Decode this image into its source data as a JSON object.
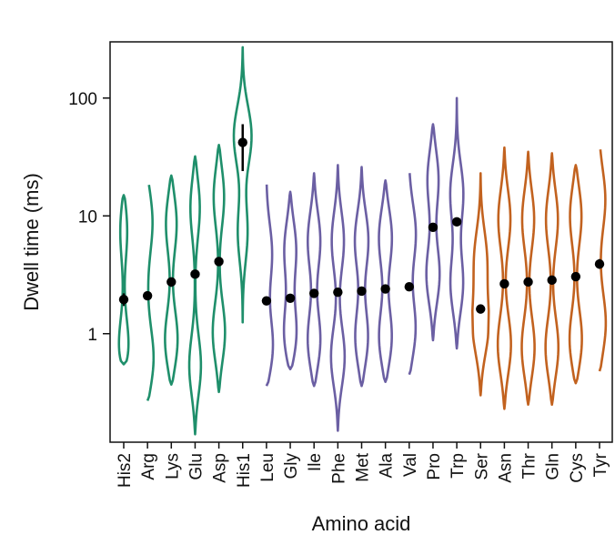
{
  "chart_data": {
    "type": "violin",
    "xlabel": "Amino acid",
    "ylabel": "Dwell time (ms)",
    "yscale": "log",
    "ylim": [
      0.12,
      300
    ],
    "yticks": [
      {
        "value": 1,
        "label": "1"
      },
      {
        "value": 10,
        "label": "10"
      },
      {
        "value": 100,
        "label": "100"
      }
    ],
    "grid": false,
    "colors": {
      "green": "#1f8f6b",
      "purple": "#6b5fa3",
      "orange": "#c2621f",
      "point": "#000000"
    },
    "categories": [
      {
        "name": "His2",
        "group": "green",
        "median": 1.95,
        "err_lo": 1.72,
        "err_hi": 2.2,
        "range": [
          0.55,
          15
        ],
        "peaks": [
          [
            0.62,
            0.9
          ],
          [
            8.5,
            0.5
          ]
        ],
        "width": 0.8
      },
      {
        "name": "Arg",
        "group": "green",
        "median": 2.1,
        "err_lo": 2.0,
        "err_hi": 2.2,
        "range": [
          0.27,
          20
        ],
        "peaks": [
          [
            0.55,
            0.9
          ],
          [
            10,
            0.75
          ]
        ],
        "width": 0.8
      },
      {
        "name": "Lys",
        "group": "green",
        "median": 2.75,
        "err_lo": 2.5,
        "err_hi": 3.0,
        "range": [
          0.37,
          22
        ],
        "peaks": [
          [
            0.8,
            0.9
          ],
          [
            9.5,
            0.75
          ]
        ],
        "width": 0.8
      },
      {
        "name": "Glu",
        "group": "green",
        "median": 3.2,
        "err_lo": 3.05,
        "err_hi": 3.35,
        "range": [
          0.14,
          32
        ],
        "peaks": [
          [
            0.5,
            0.85
          ],
          [
            13,
            0.75
          ]
        ],
        "width": 0.75
      },
      {
        "name": "Asp",
        "group": "green",
        "median": 4.1,
        "err_lo": 3.9,
        "err_hi": 4.3,
        "range": [
          0.32,
          40
        ],
        "peaks": [
          [
            0.95,
            0.9
          ],
          [
            16,
            0.8
          ]
        ],
        "width": 0.75
      },
      {
        "name": "His1",
        "group": "green",
        "median": 42,
        "err_lo": 24,
        "err_hi": 60,
        "range": [
          1.25,
          270
        ],
        "peaks": [
          [
            7,
            0.55
          ],
          [
            50,
            1.0
          ]
        ],
        "width": 0.9
      },
      {
        "name": "Leu",
        "group": "purple",
        "median": 1.9,
        "err_lo": 1.82,
        "err_hi": 1.98,
        "range": [
          0.36,
          20
        ],
        "peaks": [
          [
            0.7,
            0.95
          ],
          [
            5,
            0.7
          ]
        ],
        "width": 0.8
      },
      {
        "name": "Gly",
        "group": "purple",
        "median": 2.0,
        "err_lo": 1.9,
        "err_hi": 2.1,
        "range": [
          0.5,
          16
        ],
        "peaks": [
          [
            0.9,
            0.9
          ],
          [
            5.5,
            0.75
          ]
        ],
        "width": 0.8
      },
      {
        "name": "Ile",
        "group": "purple",
        "median": 2.2,
        "err_lo": 2.1,
        "err_hi": 2.3,
        "range": [
          0.36,
          23
        ],
        "peaks": [
          [
            0.8,
            0.9
          ],
          [
            6.5,
            0.8
          ]
        ],
        "width": 0.8
      },
      {
        "name": "Phe",
        "group": "purple",
        "median": 2.25,
        "err_lo": 2.15,
        "err_hi": 2.35,
        "range": [
          0.15,
          27
        ],
        "peaks": [
          [
            0.6,
            0.9
          ],
          [
            6.5,
            0.8
          ]
        ],
        "width": 0.8
      },
      {
        "name": "Met",
        "group": "purple",
        "median": 2.3,
        "err_lo": 2.2,
        "err_hi": 2.4,
        "range": [
          0.36,
          26
        ],
        "peaks": [
          [
            0.85,
            0.9
          ],
          [
            6.5,
            0.85
          ]
        ],
        "width": 0.8
      },
      {
        "name": "Ala",
        "group": "purple",
        "median": 2.4,
        "err_lo": 2.3,
        "err_hi": 2.5,
        "range": [
          0.39,
          20
        ],
        "peaks": [
          [
            0.85,
            0.9
          ],
          [
            7,
            0.85
          ]
        ],
        "width": 0.8
      },
      {
        "name": "Val",
        "group": "purple",
        "median": 2.5,
        "err_lo": 2.4,
        "err_hi": 2.6,
        "range": [
          0.45,
          25
        ],
        "peaks": [
          [
            1.0,
            0.9
          ],
          [
            7.5,
            0.85
          ]
        ],
        "width": 0.8
      },
      {
        "name": "Pro",
        "group": "purple",
        "median": 8.0,
        "err_lo": 7.7,
        "err_hi": 8.3,
        "range": [
          0.88,
          60
        ],
        "peaks": [
          [
            3,
            0.85
          ],
          [
            22,
            0.75
          ]
        ],
        "width": 0.8
      },
      {
        "name": "Trp",
        "group": "purple",
        "median": 8.9,
        "err_lo": 8.5,
        "err_hi": 9.4,
        "range": [
          0.75,
          100
        ],
        "peaks": [
          [
            2.5,
            0.85
          ],
          [
            16,
            0.8
          ]
        ],
        "width": 0.8
      },
      {
        "name": "Ser",
        "group": "orange",
        "median": 1.62,
        "err_lo": 1.55,
        "err_hi": 1.69,
        "range": [
          0.3,
          23
        ],
        "peaks": [
          [
            1.1,
            1.0
          ],
          [
            4.5,
            0.75
          ]
        ],
        "width": 0.8
      },
      {
        "name": "Asn",
        "group": "orange",
        "median": 2.65,
        "err_lo": 2.45,
        "err_hi": 2.85,
        "range": [
          0.23,
          38
        ],
        "peaks": [
          [
            0.75,
            0.9
          ],
          [
            10,
            0.8
          ]
        ],
        "width": 0.8
      },
      {
        "name": "Thr",
        "group": "orange",
        "median": 2.75,
        "err_lo": 2.6,
        "err_hi": 2.9,
        "range": [
          0.25,
          35
        ],
        "peaks": [
          [
            0.7,
            0.9
          ],
          [
            10,
            0.8
          ]
        ],
        "width": 0.8
      },
      {
        "name": "Gln",
        "group": "orange",
        "median": 2.85,
        "err_lo": 2.7,
        "err_hi": 3.0,
        "range": [
          0.25,
          34
        ],
        "peaks": [
          [
            0.7,
            0.9
          ],
          [
            10,
            0.8
          ]
        ],
        "width": 0.8
      },
      {
        "name": "Cys",
        "group": "orange",
        "median": 3.05,
        "err_lo": 2.8,
        "err_hi": 3.3,
        "range": [
          0.38,
          27
        ],
        "peaks": [
          [
            0.8,
            0.9
          ],
          [
            11,
            0.8
          ]
        ],
        "width": 0.8
      },
      {
        "name": "Tyr",
        "group": "orange",
        "median": 3.9,
        "err_lo": 3.55,
        "err_hi": 4.3,
        "range": [
          0.48,
          40
        ],
        "peaks": [
          [
            1.1,
            0.9
          ],
          [
            15,
            0.8
          ]
        ],
        "width": 0.8
      }
    ]
  }
}
